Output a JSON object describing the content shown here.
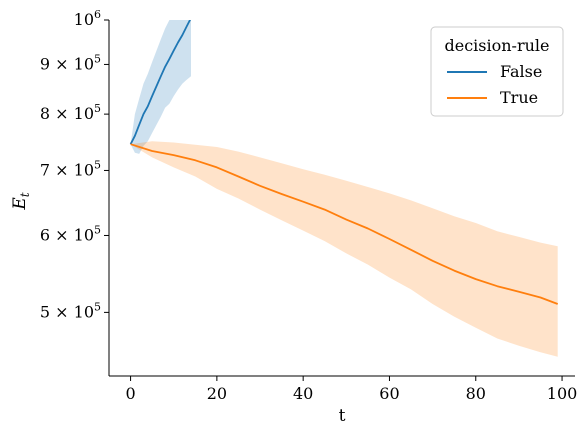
{
  "chart_data": {
    "type": "line",
    "xlabel": "t",
    "ylabel": "E_t",
    "ylabel_base": "E",
    "ylabel_sub": "t",
    "y_scale": "log",
    "xlim": [
      -5,
      103
    ],
    "ylim": [
      430000,
      1000000
    ],
    "x_ticks": [
      0,
      20,
      40,
      60,
      80,
      100
    ],
    "x_tick_labels": [
      "0",
      "20",
      "40",
      "60",
      "80",
      "100"
    ],
    "y_ticks": [
      {
        "value": 500000,
        "mantissa": "5 × 10",
        "exp": "5"
      },
      {
        "value": 600000,
        "mantissa": "6 × 10",
        "exp": "5"
      },
      {
        "value": 700000,
        "mantissa": "7 × 10",
        "exp": "5"
      },
      {
        "value": 800000,
        "mantissa": "8 × 10",
        "exp": "5"
      },
      {
        "value": 900000,
        "mantissa": "9 × 10",
        "exp": "5"
      },
      {
        "value": 1000000,
        "mantissa": "10",
        "exp": "6"
      }
    ],
    "grid": false,
    "legend": {
      "title": "decision-rule",
      "placement": "top-right"
    },
    "series": [
      {
        "name": "False",
        "color": "#1f77b4",
        "band_color": "#1f77b4",
        "x": [
          0,
          1,
          2,
          3,
          4,
          5,
          6,
          7,
          8,
          9,
          10,
          11,
          12,
          13,
          14
        ],
        "values": [
          745000,
          760000,
          780000,
          800000,
          815000,
          835000,
          855000,
          875000,
          895000,
          912000,
          930000,
          948000,
          965000,
          985000,
          1005000
        ],
        "lower": [
          745000,
          730000,
          728000,
          742000,
          750000,
          765000,
          780000,
          795000,
          812000,
          820000,
          835000,
          848000,
          860000,
          868000,
          875000
        ],
        "upper": [
          745000,
          800000,
          830000,
          860000,
          880000,
          905000,
          930000,
          955000,
          980000,
          1000000,
          1005000,
          1005000,
          1005000,
          1005000,
          1005000
        ]
      },
      {
        "name": "True",
        "color": "#ff7f0e",
        "band_color": "#ff7f0e",
        "x": [
          0,
          5,
          10,
          15,
          20,
          25,
          30,
          35,
          40,
          45,
          50,
          55,
          60,
          65,
          70,
          75,
          80,
          85,
          90,
          95,
          99
        ],
        "values": [
          745000,
          733000,
          726000,
          717000,
          705000,
          690000,
          675000,
          662000,
          650000,
          638000,
          623000,
          610000,
          595000,
          580000,
          565000,
          552000,
          541000,
          532000,
          525000,
          518000,
          510000
        ],
        "lower": [
          745000,
          722000,
          705000,
          690000,
          670000,
          655000,
          638000,
          622000,
          607000,
          592000,
          575000,
          560000,
          543000,
          528000,
          510000,
          495000,
          482000,
          470000,
          462000,
          455000,
          450000
        ],
        "upper": [
          745000,
          750000,
          748000,
          744000,
          740000,
          732000,
          722000,
          712000,
          702000,
          693000,
          683000,
          673000,
          663000,
          652000,
          640000,
          628000,
          618000,
          606000,
          598000,
          590000,
          585000
        ]
      }
    ]
  }
}
